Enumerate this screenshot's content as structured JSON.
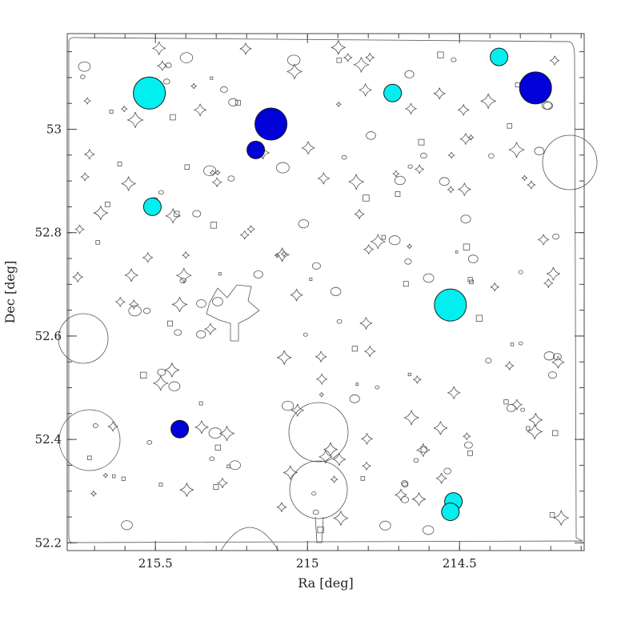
{
  "chart_data": {
    "type": "scatter",
    "title": "",
    "xlabel": "Ra [deg]",
    "ylabel": "Dec [deg]",
    "xlim": [
      215.79,
      214.09
    ],
    "ylim": [
      52.185,
      53.185
    ],
    "x_inverted": true,
    "grid": false,
    "x_ticks": [
      {
        "value": 215.5,
        "label": "215.5"
      },
      {
        "value": 215.0,
        "label": "215"
      },
      {
        "value": 214.5,
        "label": "214.5"
      }
    ],
    "y_ticks": [
      {
        "value": 52.2,
        "label": "52.2"
      },
      {
        "value": 52.4,
        "label": "52.4"
      },
      {
        "value": 52.6,
        "label": "52.6"
      },
      {
        "value": 52.8,
        "label": "52.8"
      },
      {
        "value": 53.0,
        "label": "53"
      }
    ],
    "series": [
      {
        "color": "#00f0f0",
        "points": [
          {
            "x": 215.52,
            "y": 53.07,
            "size": "large"
          },
          {
            "x": 214.72,
            "y": 53.07,
            "size": "small"
          },
          {
            "x": 214.37,
            "y": 53.14,
            "size": "small"
          },
          {
            "x": 215.51,
            "y": 52.85,
            "size": "small"
          },
          {
            "x": 214.53,
            "y": 52.66,
            "size": "large"
          },
          {
            "x": 214.52,
            "y": 52.28,
            "size": "small"
          },
          {
            "x": 214.53,
            "y": 52.26,
            "size": "small"
          }
        ]
      },
      {
        "color": "#0000d8",
        "points": [
          {
            "x": 214.25,
            "y": 53.08,
            "size": "large"
          },
          {
            "x": 215.12,
            "y": 53.01,
            "size": "large"
          },
          {
            "x": 215.17,
            "y": 52.96,
            "size": "small"
          },
          {
            "x": 215.42,
            "y": 52.42,
            "size": "small"
          }
        ]
      }
    ]
  }
}
